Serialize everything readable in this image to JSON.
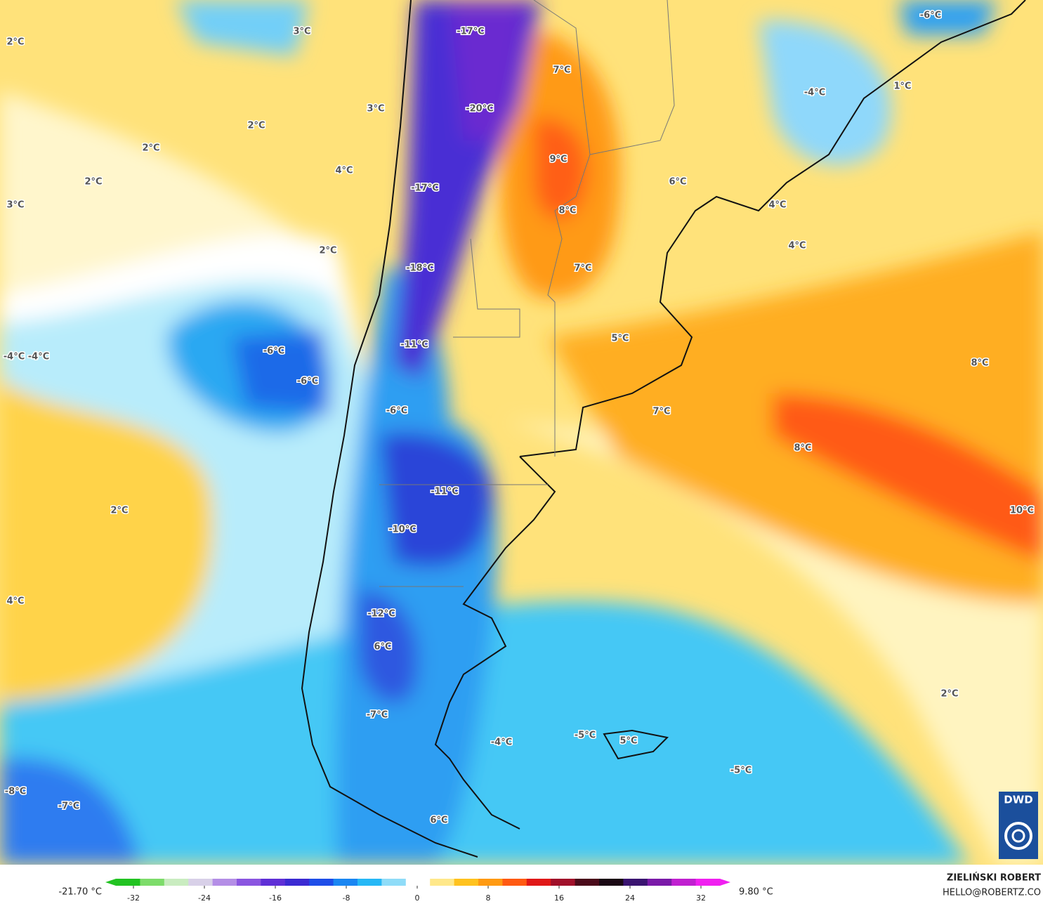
{
  "map": {
    "labels": [
      "2°C",
      "3°C",
      "-17°C",
      "-6°C",
      "7°C",
      "3°C",
      "-20°C",
      "-4°C",
      "1°C",
      "2°C",
      "2°C",
      "4°C",
      "9°C",
      "2°C",
      "-17°C",
      "6°C",
      "3°C",
      "8°C",
      "4°C",
      "4°C",
      "2°C",
      "-18°C",
      "7°C",
      "5°C",
      "-11°C",
      "-6°C",
      "-4°C",
      "-4°C",
      "-6°C",
      "8°C",
      "-6°C",
      "7°C",
      "8°C",
      "-11°C",
      "2°C",
      "10°C",
      "-10°C",
      "4°C",
      "-12°C",
      "6°C",
      "2°C",
      "-7°C",
      "-4°C",
      "-5°C",
      "5°C",
      "-5°C",
      "-8°C",
      "-7°C",
      "6°C"
    ],
    "logo": "DWD"
  },
  "legend": {
    "min_label": "-21.70 °C",
    "max_label": "9.80 °C",
    "ticks": [
      -32,
      -24,
      -16,
      -8,
      0,
      8,
      16,
      24,
      32
    ],
    "colors": [
      "#22c322",
      "#7ddc6a",
      "#c9ecc0",
      "#d8d0e8",
      "#b48ee6",
      "#8a55e0",
      "#5f2fd6",
      "#3b2ad2",
      "#1e4ee8",
      "#1a86f2",
      "#26b8f6",
      "#8fdcf8",
      "#ffffff",
      "#ffe88a",
      "#ffc21e",
      "#ff9a12",
      "#ff5a12",
      "#e01818",
      "#a0102a",
      "#4a0a1a",
      "#1a0814",
      "#3a1470",
      "#7a1aa8",
      "#c020d0",
      "#f020f0"
    ]
  },
  "credit": {
    "author": "ZIELIŃSKI ROBERT",
    "email": "HELLO@ROBERTZ.CO"
  }
}
